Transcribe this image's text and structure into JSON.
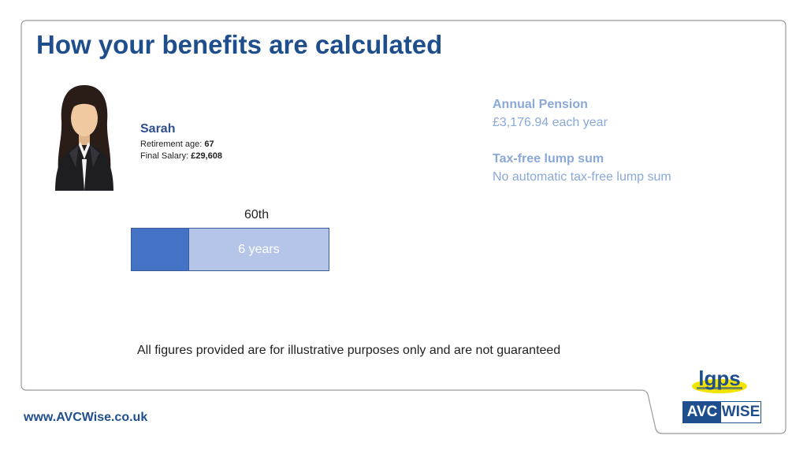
{
  "slide": {
    "title": "How your benefits are calculated"
  },
  "member": {
    "name": "Sarah",
    "retirement_age_label": "Retirement age: ",
    "retirement_age": "67",
    "final_salary_label": "Final Salary: ",
    "final_salary": "£29,608"
  },
  "benefits": {
    "annual_pension_label": "Annual Pension",
    "annual_pension_value": "£3,176.94 each year",
    "lump_sum_label": "Tax-free lump sum",
    "lump_sum_value": "No automatic tax-free lump sum"
  },
  "accrual": {
    "label": "60th",
    "bar_text": "6 years"
  },
  "footer": {
    "disclaimer": "All figures provided are for illustrative purposes only and are not guaranteed",
    "website": "www.AVCWise.co.uk"
  },
  "logos": {
    "lgps": "lgps",
    "avc": "AVC",
    "wise": "WISE"
  },
  "colors": {
    "title": "#1f4e8c",
    "benefit_text": "#8aa8d8",
    "bar_dark": "#4472c4",
    "bar_light": "#b4c5e7"
  }
}
